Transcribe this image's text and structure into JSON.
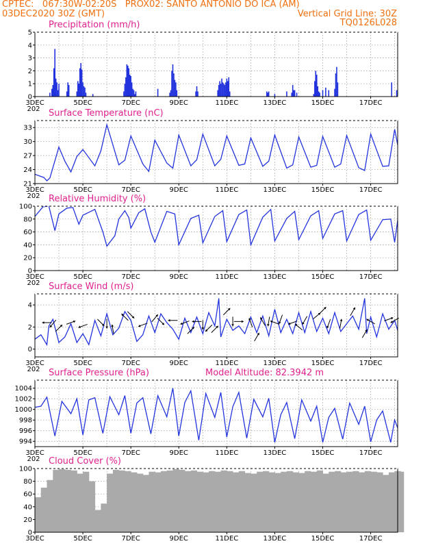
{
  "header": {
    "line1_left": "CPTEC:   067:30W-02:20S   PROX02: SANTO ANTONIO DO ICA (AM)",
    "line2_left": "03DEC2020 30Z (GMT)",
    "line2_right": "Vertical Grid Line: 30Z",
    "line3_right": "TQ0126L028",
    "color": "#f07010"
  },
  "colors": {
    "title": "#e0208c",
    "line": "#2233dd",
    "cloud": "#aaaaaa",
    "grid": "#999999"
  },
  "chart_data": [
    {
      "type": "bar",
      "title": "Precipitation (mm/h)",
      "ylim": [
        0,
        5
      ],
      "yticks": [
        0,
        1,
        2,
        3,
        4,
        5
      ],
      "x_ticks": [
        "3DEC",
        "5DEC",
        "7DEC",
        "9DEC",
        "11DEC",
        "13DEC",
        "15DEC",
        "17DEC"
      ],
      "x_sub_label": "202",
      "x_range_days": [
        3,
        18.125
      ],
      "x": [
        3.625,
        3.708,
        3.75,
        3.792,
        3.833,
        3.875,
        3.917,
        3.958,
        4.0,
        4.333,
        4.375,
        4.417,
        4.75,
        4.792,
        4.833,
        4.875,
        4.917,
        4.958,
        5.0,
        5.042,
        5.083,
        5.125,
        5.417,
        6.708,
        6.75,
        6.792,
        6.833,
        6.875,
        6.917,
        6.958,
        7.0,
        7.042,
        7.083,
        7.125,
        7.167,
        7.208,
        8.125,
        8.625,
        8.667,
        8.708,
        8.75,
        8.792,
        8.833,
        8.875,
        8.917,
        9.708,
        9.75,
        9.792,
        10.625,
        10.667,
        10.708,
        10.75,
        10.792,
        10.833,
        10.875,
        10.917,
        10.958,
        11.0,
        11.042,
        11.083,
        11.125,
        12.667,
        12.708,
        12.75,
        13.0,
        13.5,
        13.708,
        13.75,
        13.792,
        13.833,
        13.917,
        14.625,
        14.667,
        14.708,
        14.75,
        14.792,
        14.833,
        14.875,
        15.0,
        15.125,
        15.25,
        15.5,
        15.542,
        15.583,
        15.625,
        17.875,
        18.083
      ],
      "values": [
        0.3,
        0.6,
        0.9,
        2.2,
        3.7,
        1.4,
        1.1,
        0.5,
        1.0,
        0.4,
        1.1,
        0.9,
        0.4,
        1.2,
        1.0,
        2.2,
        2.6,
        2.1,
        1.1,
        0.8,
        0.7,
        0.3,
        0.2,
        0.4,
        1.0,
        1.5,
        2.5,
        2.4,
        2.2,
        1.7,
        1.6,
        1.1,
        0.6,
        0.5,
        0.2,
        0.4,
        0.6,
        0.3,
        0.5,
        2.0,
        2.5,
        1.8,
        1.3,
        1.1,
        0.5,
        0.4,
        0.8,
        0.4,
        0.5,
        0.9,
        1.2,
        1.0,
        1.4,
        1.1,
        1.0,
        0.9,
        1.1,
        1.4,
        1.2,
        1.5,
        0.4,
        0.4,
        0.3,
        0.4,
        0.2,
        0.4,
        0.3,
        0.9,
        0.5,
        0.5,
        0.3,
        0.2,
        1.2,
        2.0,
        1.7,
        0.8,
        0.4,
        0.3,
        0.5,
        0.7,
        0.5,
        0.6,
        1.8,
        2.3,
        1.1,
        1.1,
        0.5
      ]
    },
    {
      "type": "line",
      "title": "Surface Temperature (nC)",
      "ylim": [
        21,
        34.5
      ],
      "yticks": [
        21,
        24,
        27,
        30,
        33
      ],
      "x_ticks": [
        "3DEC",
        "5DEC",
        "7DEC",
        "9DEC",
        "11DEC",
        "13DEC",
        "15DEC",
        "17DEC"
      ],
      "x_sub_label": "202",
      "x_range_days": [
        3,
        18.125
      ],
      "series": [
        {
          "x": [
            3.0,
            3.375,
            3.5,
            3.625,
            4.0,
            4.25,
            4.5,
            4.75,
            5.0,
            5.5,
            5.75,
            6.0,
            6.5,
            6.75,
            7.0,
            7.5,
            7.75,
            8.0,
            8.5,
            8.75,
            9.0,
            9.5,
            9.75,
            10.0,
            10.5,
            10.75,
            11.0,
            11.5,
            11.75,
            12.0,
            12.5,
            12.75,
            13.0,
            13.5,
            13.75,
            14.0,
            14.5,
            14.75,
            15.0,
            15.5,
            15.75,
            16.0,
            16.5,
            16.75,
            17.0,
            17.5,
            17.75,
            18.0,
            18.125
          ],
          "values": [
            23.0,
            22.3,
            21.6,
            22.2,
            28.8,
            25.8,
            23.5,
            26.8,
            28.3,
            24.8,
            28.0,
            33.6,
            25.0,
            26.0,
            31.2,
            25.2,
            23.6,
            30.3,
            25.4,
            24.3,
            31.4,
            24.8,
            26.1,
            31.6,
            24.8,
            26.2,
            31.2,
            24.9,
            25.2,
            30.8,
            24.7,
            25.8,
            31.4,
            24.3,
            25.0,
            31.0,
            24.5,
            24.9,
            31.1,
            24.5,
            25.2,
            31.3,
            24.4,
            23.8,
            31.6,
            24.7,
            24.8,
            32.6,
            29.3
          ]
        }
      ]
    },
    {
      "type": "line",
      "title": "Relative Humidity (%)",
      "ylim": [
        0,
        100
      ],
      "yticks": [
        0,
        20,
        40,
        60,
        80,
        100
      ],
      "x_ticks": [
        "3DEC",
        "5DEC",
        "7DEC",
        "9DEC",
        "11DEC",
        "13DEC",
        "15DEC",
        "17DEC"
      ],
      "x_sub_label": "202",
      "x_range_days": [
        3,
        18.125
      ],
      "series": [
        {
          "x": [
            3.0,
            3.333,
            3.583,
            3.833,
            4.0,
            4.333,
            4.583,
            4.833,
            5.0,
            5.5,
            5.833,
            6.0,
            6.333,
            6.5,
            6.75,
            6.917,
            7.0,
            7.333,
            7.583,
            7.833,
            8.0,
            8.5,
            8.833,
            9.0,
            9.5,
            9.833,
            10.0,
            10.5,
            10.833,
            11.0,
            11.5,
            11.833,
            12.0,
            12.5,
            12.833,
            13.0,
            13.5,
            13.833,
            14.0,
            14.5,
            14.833,
            15.0,
            15.5,
            15.833,
            16.0,
            16.5,
            16.833,
            17.0,
            17.5,
            17.833,
            18.0,
            18.125
          ],
          "values": [
            84,
            99,
            100,
            62,
            88,
            97,
            98,
            72,
            86,
            95,
            60,
            38,
            54,
            80,
            93,
            82,
            66,
            90,
            96,
            60,
            44,
            92,
            88,
            40,
            81,
            86,
            43,
            84,
            93,
            45,
            87,
            94,
            40,
            83,
            95,
            46,
            81,
            92,
            48,
            85,
            93,
            50,
            88,
            93,
            46,
            87,
            94,
            47,
            79,
            80,
            44,
            78
          ]
        }
      ]
    },
    {
      "type": "line",
      "title": "Surface Wind (m/s)",
      "ylim": [
        -0.7,
        5
      ],
      "yticks": [
        0,
        2,
        4
      ],
      "x_ticks": [
        "3DEC",
        "5DEC",
        "7DEC",
        "9DEC",
        "11DEC",
        "13DEC",
        "15DEC",
        "17DEC"
      ],
      "x_sub_label": "202",
      "x_range_days": [
        3,
        18.125
      ],
      "series": [
        {
          "x": [
            3.0,
            3.25,
            3.5,
            3.583,
            3.75,
            4.0,
            4.25,
            4.5,
            4.75,
            5.0,
            5.25,
            5.5,
            5.75,
            6.0,
            6.25,
            6.5,
            6.75,
            7.0,
            7.25,
            7.5,
            7.75,
            8.0,
            8.25,
            8.5,
            8.75,
            9.0,
            9.25,
            9.5,
            9.75,
            10.0,
            10.25,
            10.5,
            10.667,
            10.75,
            11.0,
            11.25,
            11.5,
            11.75,
            12.0,
            12.25,
            12.5,
            12.75,
            13.0,
            13.25,
            13.5,
            13.75,
            14.0,
            14.25,
            14.5,
            14.75,
            15.0,
            15.25,
            15.5,
            15.75,
            16.0,
            16.25,
            16.5,
            16.75,
            16.833,
            17.0,
            17.25,
            17.5,
            17.75,
            18.0,
            18.125
          ],
          "values": [
            0.9,
            1.3,
            0.4,
            2.1,
            2.7,
            0.6,
            1.1,
            2.3,
            0.6,
            1.4,
            0.4,
            2.6,
            1.2,
            3.2,
            1.3,
            1.9,
            3.4,
            2.6,
            0.7,
            1.3,
            3.0,
            1.5,
            3.2,
            2.4,
            1.8,
            0.9,
            2.8,
            1.5,
            2.9,
            1.4,
            3.3,
            2.1,
            4.6,
            1.1,
            2.7,
            1.7,
            2.1,
            1.4,
            2.9,
            1.5,
            3.0,
            1.2,
            3.6,
            1.5,
            2.7,
            1.4,
            3.3,
            1.5,
            3.4,
            1.6,
            2.8,
            1.4,
            3.3,
            1.6,
            2.3,
            3.0,
            1.8,
            4.6,
            1.4,
            2.9,
            1.1,
            3.2,
            1.8,
            2.6,
            1.7
          ]
        }
      ],
      "barbs": [
        {
          "x": 3.5,
          "speed": 2.4,
          "dir_deg": 180
        },
        {
          "x": 3.75,
          "speed": 2.3,
          "dir_deg": 230
        },
        {
          "x": 4.0,
          "speed": 1.9,
          "dir_deg": 45
        },
        {
          "x": 4.5,
          "speed": 2.4,
          "dir_deg": 20
        },
        {
          "x": 5.0,
          "speed": 2.1,
          "dir_deg": 200
        },
        {
          "x": 5.75,
          "speed": 2.4,
          "dir_deg": 315
        },
        {
          "x": 6.0,
          "speed": 2.3,
          "dir_deg": 270
        },
        {
          "x": 6.25,
          "speed": 1.8,
          "dir_deg": 100
        },
        {
          "x": 6.75,
          "speed": 2.9,
          "dir_deg": 135
        },
        {
          "x": 7.0,
          "speed": 3.1,
          "dir_deg": 315
        },
        {
          "x": 7.5,
          "speed": 2.2,
          "dir_deg": 200
        },
        {
          "x": 8.0,
          "speed": 2.8,
          "dir_deg": 50
        },
        {
          "x": 8.25,
          "speed": 2.5,
          "dir_deg": 315
        },
        {
          "x": 8.75,
          "speed": 2.6,
          "dir_deg": 180
        },
        {
          "x": 9.25,
          "speed": 2.4,
          "dir_deg": 200
        },
        {
          "x": 9.5,
          "speed": 1.7,
          "dir_deg": 45
        },
        {
          "x": 9.75,
          "speed": 2.5,
          "dir_deg": 180
        },
        {
          "x": 10.0,
          "speed": 2.2,
          "dir_deg": 270
        },
        {
          "x": 10.25,
          "speed": 1.9,
          "dir_deg": 225
        },
        {
          "x": 10.5,
          "speed": 1.8,
          "dir_deg": 45
        },
        {
          "x": 11.0,
          "speed": 3.4,
          "dir_deg": 45
        },
        {
          "x": 11.25,
          "speed": 2.5,
          "dir_deg": 270
        },
        {
          "x": 11.5,
          "speed": 2.5,
          "dir_deg": 0
        },
        {
          "x": 12.0,
          "speed": 2.4,
          "dir_deg": 110
        },
        {
          "x": 12.25,
          "speed": 1.1,
          "dir_deg": 60
        },
        {
          "x": 12.5,
          "speed": 2.5,
          "dir_deg": 120
        },
        {
          "x": 12.75,
          "speed": 2.5,
          "dir_deg": 260
        },
        {
          "x": 13.0,
          "speed": 2.4,
          "dir_deg": 160
        },
        {
          "x": 13.25,
          "speed": 2.7,
          "dir_deg": 250
        },
        {
          "x": 13.75,
          "speed": 2.4,
          "dir_deg": 200
        },
        {
          "x": 14.0,
          "speed": 2.0,
          "dir_deg": 140
        },
        {
          "x": 14.25,
          "speed": 2.6,
          "dir_deg": 240
        },
        {
          "x": 14.75,
          "speed": 3.0,
          "dir_deg": 40
        },
        {
          "x": 15.0,
          "speed": 3.5,
          "dir_deg": 45
        },
        {
          "x": 15.25,
          "speed": 2.3,
          "dir_deg": 250
        },
        {
          "x": 15.75,
          "speed": 2.3,
          "dir_deg": 80
        },
        {
          "x": 16.25,
          "speed": 3.4,
          "dir_deg": 60
        },
        {
          "x": 16.75,
          "speed": 1.4,
          "dir_deg": 60
        },
        {
          "x": 17.0,
          "speed": 2.5,
          "dir_deg": 150
        },
        {
          "x": 17.75,
          "speed": 2.7,
          "dir_deg": 20
        },
        {
          "x": 18.0,
          "speed": 2.6,
          "dir_deg": 210
        }
      ]
    },
    {
      "type": "line",
      "title": "Surface Pressure (hPa)",
      "annotation": "Model Altitude: 82.3942 m",
      "ylim": [
        993,
        1005.5
      ],
      "yticks": [
        994,
        996,
        998,
        1000,
        1002,
        1004
      ],
      "x_ticks": [
        "3DEC",
        "5DEC",
        "7DEC",
        "9DEC",
        "11DEC",
        "13DEC",
        "15DEC",
        "17DEC"
      ],
      "x_sub_label": "202",
      "x_range_days": [
        3,
        18.125
      ],
      "series": [
        {
          "x": [
            3.0,
            3.25,
            3.5,
            3.833,
            4.125,
            4.5,
            4.75,
            5.0,
            5.25,
            5.5,
            5.833,
            6.125,
            6.5,
            6.75,
            7.0,
            7.25,
            7.5,
            7.833,
            8.125,
            8.5,
            8.75,
            9.0,
            9.25,
            9.5,
            9.833,
            10.125,
            10.5,
            10.75,
            11.0,
            11.25,
            11.5,
            11.833,
            12.125,
            12.5,
            12.75,
            13.0,
            13.25,
            13.5,
            13.833,
            14.125,
            14.5,
            14.75,
            15.0,
            15.25,
            15.5,
            15.833,
            16.125,
            16.5,
            16.75,
            17.0,
            17.25,
            17.5,
            17.833,
            18.0,
            18.125
          ],
          "values": [
            1000.4,
            1000.6,
            1002.3,
            995.0,
            1001.5,
            999.2,
            1002.0,
            995.2,
            1001.8,
            1002.2,
            995.5,
            1002.4,
            999.0,
            1002.6,
            995.5,
            1001.2,
            1002.2,
            995.4,
            1002.6,
            998.6,
            1004.0,
            995.0,
            1001.3,
            1003.5,
            994.2,
            1003.0,
            998.5,
            1003.2,
            994.8,
            1000.5,
            1003.2,
            994.6,
            1001.9,
            998.6,
            1002.1,
            993.8,
            999.0,
            1001.3,
            994.5,
            1001.8,
            997.8,
            1000.6,
            993.8,
            998.5,
            1000.2,
            994.4,
            1001.2,
            997.2,
            1000.6,
            993.9,
            998.0,
            999.7,
            993.8,
            998.0,
            996.5
          ]
        }
      ]
    },
    {
      "type": "bar",
      "title": "Cloud Cover (%)",
      "ylim": [
        0,
        100
      ],
      "yticks": [
        0,
        20,
        40,
        60,
        80,
        100
      ],
      "x_ticks": [
        "3DEC",
        "5DEC",
        "7DEC",
        "9DEC",
        "11DEC",
        "13DEC",
        "15DEC",
        "17DEC"
      ],
      "x_range_days": [
        3,
        18.125
      ],
      "x": [
        3.0,
        3.25,
        3.5,
        3.625,
        3.75,
        4.0,
        4.25,
        4.5,
        4.75,
        5.0,
        5.25,
        5.5,
        5.75,
        6.0,
        6.25,
        6.5,
        6.75,
        7.0,
        7.25,
        7.5,
        7.75,
        8.0,
        8.25,
        8.5,
        8.625,
        8.75,
        9.0,
        9.25,
        9.5,
        9.75,
        10.0,
        10.25,
        10.5,
        10.75,
        11.0,
        11.25,
        11.5,
        11.75,
        12.0,
        12.25,
        12.5,
        12.75,
        13.0,
        13.25,
        13.5,
        13.75,
        14.0,
        14.25,
        14.5,
        14.75,
        15.0,
        15.25,
        15.5,
        15.75,
        16.0,
        16.25,
        16.5,
        16.75,
        17.0,
        17.25,
        17.5,
        17.75,
        18.0,
        18.125
      ],
      "values": [
        55,
        70,
        82,
        40,
        98,
        99,
        98,
        97,
        92,
        95,
        80,
        35,
        45,
        92,
        98,
        97,
        96,
        94,
        92,
        90,
        95,
        94,
        96,
        97,
        50,
        99,
        98,
        96,
        97,
        95,
        94,
        96,
        95,
        97,
        96,
        94,
        96,
        93,
        92,
        95,
        96,
        94,
        93,
        95,
        96,
        94,
        93,
        96,
        95,
        97,
        92,
        95,
        96,
        94,
        95,
        96,
        94,
        96,
        95,
        94,
        90,
        94,
        96,
        95
      ]
    }
  ]
}
